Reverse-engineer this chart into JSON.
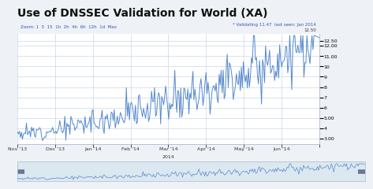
{
  "title": "Use of DNSSEC Validation for World (XA)",
  "title_fontsize": 10,
  "title_fontweight": "bold",
  "line_color": "#5588cc",
  "background_color": "#eef2f7",
  "plot_bg_color": "#ffffff",
  "grid_color": "#c8d8e8",
  "scrollbar_bg": "#dce8f0",
  "ylim": [
    2.5,
    13.2
  ],
  "ytick_labels": [
    "3.00",
    "4",
    "5.00",
    "6",
    "7",
    "8",
    "9",
    "10",
    "11.00",
    "12.00",
    "12.50"
  ],
  "yticks": [
    3.0,
    4.0,
    5.0,
    6.0,
    7.0,
    8.0,
    9.0,
    10.0,
    11.0,
    12.0,
    12.5
  ],
  "xlabel_labels": [
    "Nov '13",
    "Dec '13",
    "Jan '14",
    "Feb '14",
    "Mar '14",
    "Apr '14",
    "May '14",
    "Jun '14"
  ],
  "legend_text": "* Validating 11.47  last seen: Jan 2014",
  "legend_value": "12.50",
  "subtitle_text": "Zoom: 1  5  15  1h  2h  4h  6h  12h  1d  Max",
  "annotation_year": "2014",
  "num_points": 300,
  "tick_fontsize": 4.5,
  "subtitle_fontsize": 4,
  "legend_fontsize": 4
}
